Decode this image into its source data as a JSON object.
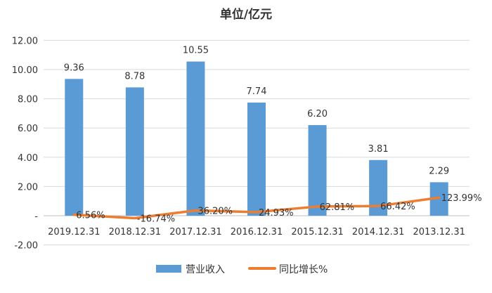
{
  "chart_data": {
    "type": "bar",
    "title": "单位/亿元",
    "categories": [
      "2019.12.31",
      "2018.12.31",
      "2017.12.31",
      "2016.12.31",
      "2015.12.31",
      "2014.12.31",
      "2013.12.31"
    ],
    "series": [
      {
        "name": "营业收入",
        "type": "bar",
        "color": "#5B9BD5",
        "values": [
          9.36,
          8.78,
          10.55,
          7.74,
          6.2,
          3.81,
          2.29
        ],
        "labels": [
          "9.36",
          "8.78",
          "10.55",
          "7.74",
          "6.20",
          "3.81",
          "2.29"
        ]
      },
      {
        "name": "同比增长%",
        "type": "line",
        "color": "#ED7D31",
        "values": [
          0.0656,
          -0.1674,
          0.362,
          0.2493,
          0.6281,
          0.6642,
          1.2399
        ],
        "labels": [
          "6.56%",
          "-16.74%",
          "36.20%",
          "24.93%",
          "62.81%",
          "66.42%",
          "123.99%"
        ]
      }
    ],
    "ylim": [
      -2,
      12
    ],
    "yticks": [
      12,
      10,
      8,
      6,
      4,
      2,
      0,
      -2
    ],
    "ytick_labels": [
      "12.00",
      "10.00",
      "8.00",
      "6.00",
      "4.00",
      "2.00",
      "-",
      "-2.00"
    ],
    "grid": true,
    "legend_position": "bottom"
  }
}
